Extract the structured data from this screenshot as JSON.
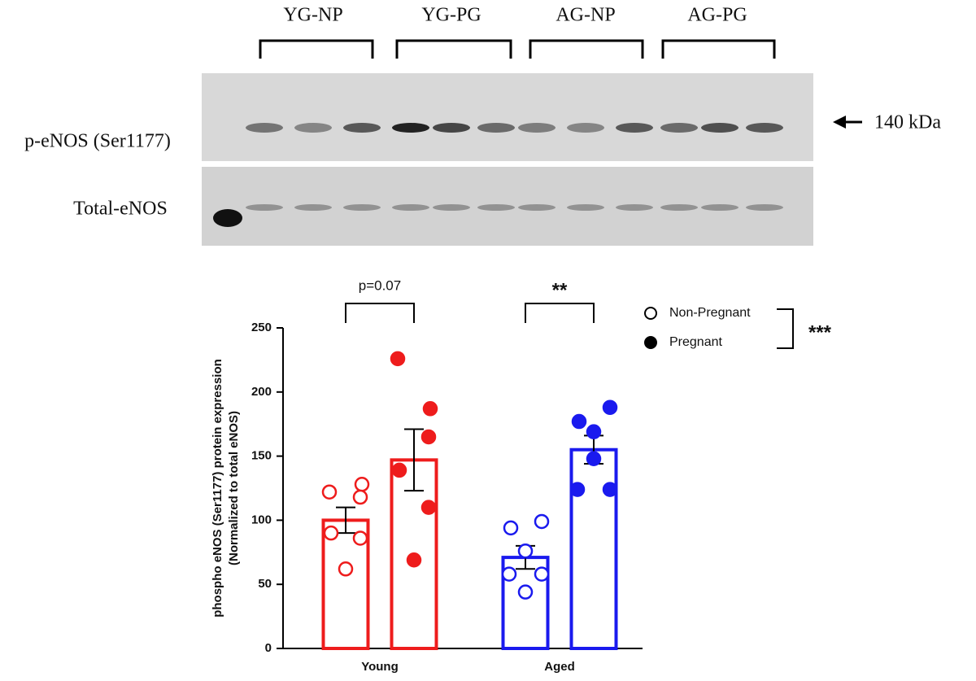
{
  "blot": {
    "groups": [
      "YG-NP",
      "YG-PG",
      "AG-NP",
      "AG-PG"
    ],
    "rows": [
      "p-eNOS (Ser1177)",
      "Total-eNOS"
    ],
    "marker": "140 kDa"
  },
  "chart_data": {
    "type": "bar",
    "ylabel": [
      "phospho eNOS (Ser1177) protein expression",
      "(Normalized to total eNOS)"
    ],
    "categories": [
      "Young",
      "Aged"
    ],
    "category_colors": [
      "#ee1c1c",
      "#1a1aee"
    ],
    "series": [
      {
        "name": "Non-Pregnant",
        "color": "#000000",
        "marker": "open",
        "values": [
          100,
          71
        ],
        "errors": [
          10,
          9
        ],
        "points": [
          [
            122,
            128,
            118,
            90,
            86,
            62
          ],
          [
            94,
            99,
            76,
            58,
            58,
            44
          ]
        ]
      },
      {
        "name": "Pregnant",
        "color": "#000000",
        "marker": "filled",
        "values": [
          147,
          155
        ],
        "errors": [
          24,
          11
        ],
        "points": [
          [
            226,
            187,
            165,
            139,
            110,
            69
          ],
          [
            177,
            188,
            169,
            124,
            124,
            148
          ]
        ]
      }
    ],
    "ylim": [
      0,
      250
    ],
    "yticks": [
      0,
      50,
      100,
      150,
      200,
      250
    ],
    "grid": false,
    "annotations": [
      "p=0.07",
      "**"
    ],
    "legend_annotation": "***"
  }
}
